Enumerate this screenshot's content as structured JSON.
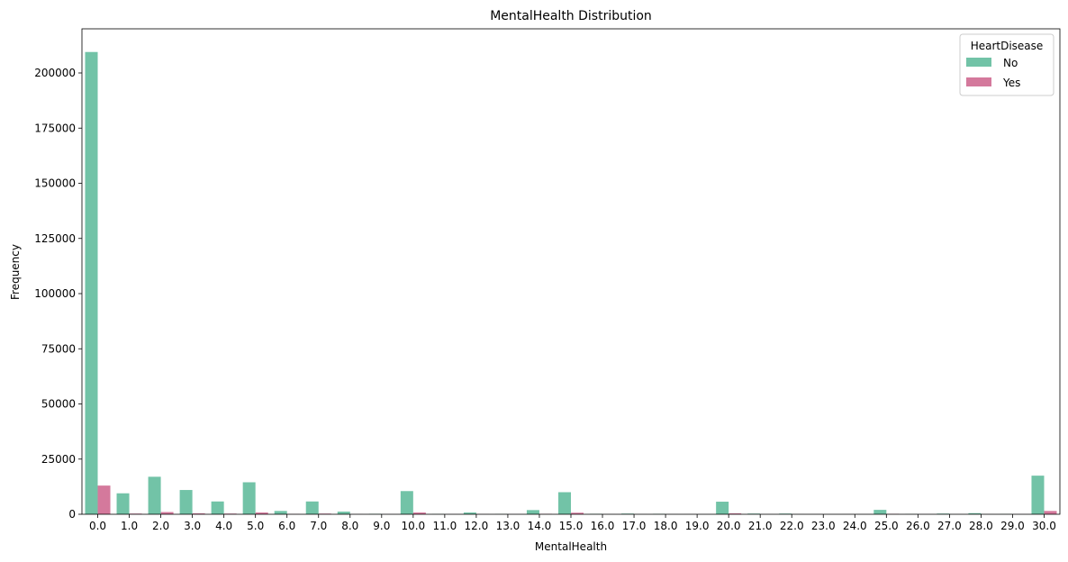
{
  "chart_data": {
    "type": "bar",
    "title": "MentalHealth Distribution",
    "xlabel": "MentalHealth",
    "ylabel": "Frequency",
    "categories": [
      "0.0",
      "1.0",
      "2.0",
      "3.0",
      "4.0",
      "5.0",
      "6.0",
      "7.0",
      "8.0",
      "9.0",
      "10.0",
      "11.0",
      "12.0",
      "13.0",
      "14.0",
      "15.0",
      "16.0",
      "17.0",
      "18.0",
      "19.0",
      "20.0",
      "21.0",
      "22.0",
      "23.0",
      "24.0",
      "25.0",
      "26.0",
      "27.0",
      "28.0",
      "29.0",
      "30.0"
    ],
    "series": [
      {
        "name": "No",
        "color": "#72c3a7",
        "values": [
          209500,
          9500,
          17000,
          11000,
          5800,
          14500,
          1500,
          5800,
          1200,
          200,
          10500,
          100,
          800,
          100,
          1900,
          10000,
          200,
          300,
          200,
          20,
          5700,
          300,
          300,
          20,
          20,
          2000,
          100,
          300,
          500,
          100,
          17500
        ]
      },
      {
        "name": "Yes",
        "color": "#d4799c",
        "values": [
          13000,
          300,
          1000,
          400,
          300,
          800,
          100,
          300,
          50,
          10,
          800,
          10,
          50,
          10,
          200,
          700,
          20,
          30,
          20,
          5,
          400,
          20,
          20,
          5,
          5,
          200,
          10,
          20,
          30,
          10,
          1500
        ]
      }
    ],
    "yticks": [
      0,
      25000,
      50000,
      75000,
      100000,
      125000,
      150000,
      175000,
      200000
    ],
    "ylim": [
      0,
      220000
    ],
    "legend": {
      "title": "HeartDisease",
      "position": "top-right"
    }
  }
}
